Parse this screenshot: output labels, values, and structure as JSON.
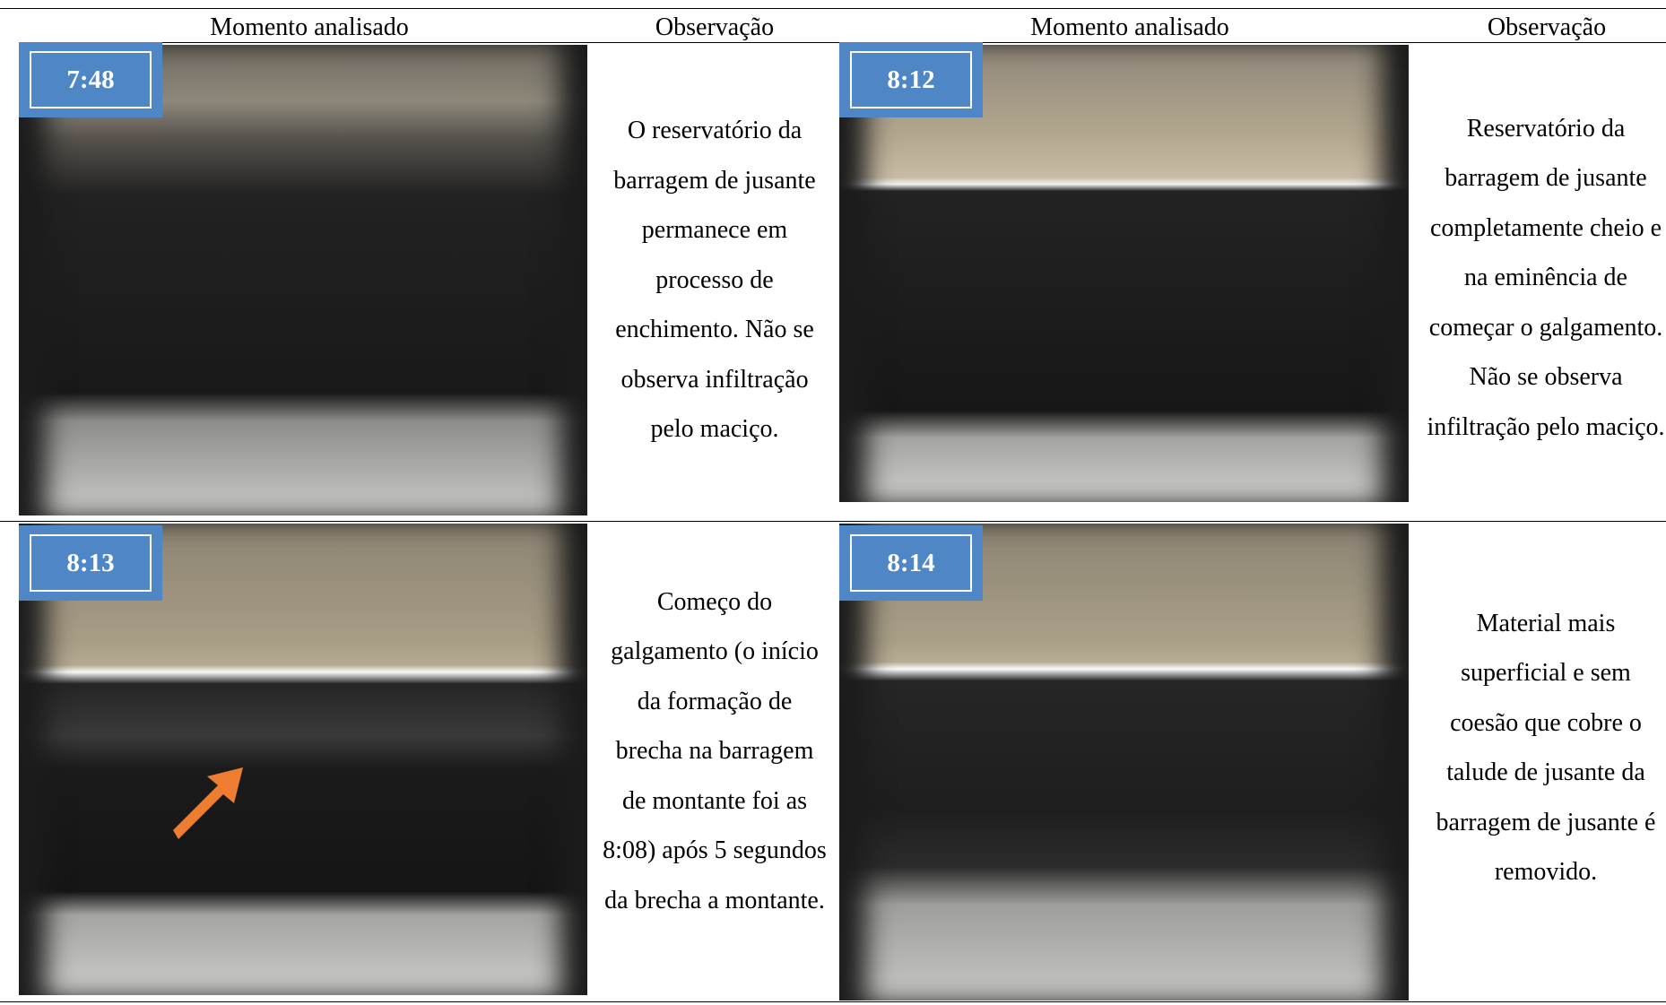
{
  "header": {
    "columns": [
      "Momento analisado",
      "Observação",
      "Momento analisado",
      "Observação"
    ]
  },
  "table": {
    "rows": [
      [
        {
          "time": "7:48",
          "observation": "O reservatório da barragem de jusante permanece em processo de enchimento. Não se observa infiltração pelo maciço."
        },
        {
          "time": "8:12",
          "observation": "Reservatório da barragem de jusante completamente cheio e na eminência de começar o galgamento. Não se observa infiltração pelo maciço."
        }
      ],
      [
        {
          "time": "8:13",
          "observation": "Começo do galgamento (o início da formação de brecha na barragem de montante foi as 8:08) após 5 segundos da brecha a montante."
        },
        {
          "time": "8:14",
          "observation": "Material mais superficial e sem coesão que cobre o talude de jusante da barragem de jusante é removido."
        }
      ]
    ]
  }
}
